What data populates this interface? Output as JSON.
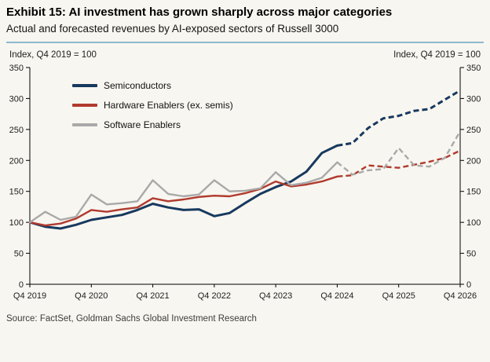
{
  "header": {
    "title": "Exhibit 15: AI investment has grown sharply across major categories",
    "subtitle": "Actual and forecasted revenues by AI-exposed sectors of Russell 3000"
  },
  "axis_caption_left": "Index, Q4 2019 = 100",
  "axis_caption_right": "Index, Q4 2019 = 100",
  "source": "Source: FactSet, Goldman Sachs Global Investment Research",
  "chart_data": {
    "type": "line",
    "title": "Exhibit 15: AI investment has grown sharply across major categories",
    "subtitle": "Actual and forecasted revenues by AI-exposed sectors of Russell 3000",
    "ylabel": "Index, Q4 2019 = 100",
    "ylim": [
      0,
      350
    ],
    "y_tick_step": 50,
    "grid": false,
    "legend_position": "top-left-inside",
    "x": [
      "Q4 2019",
      "Q1 2020",
      "Q2 2020",
      "Q3 2020",
      "Q4 2020",
      "Q1 2021",
      "Q2 2021",
      "Q3 2021",
      "Q4 2021",
      "Q1 2022",
      "Q2 2022",
      "Q3 2022",
      "Q4 2022",
      "Q1 2023",
      "Q2 2023",
      "Q3 2023",
      "Q4 2023",
      "Q1 2024",
      "Q2 2024",
      "Q3 2024",
      "Q4 2024",
      "Q1 2025",
      "Q2 2025",
      "Q3 2025",
      "Q4 2025",
      "Q1 2026",
      "Q2 2026",
      "Q3 2026",
      "Q4 2026"
    ],
    "x_tick_indices": [
      0,
      4,
      8,
      12,
      16,
      20,
      24,
      28
    ],
    "forecast_start_index": 20,
    "forecast_style": "dashed",
    "series": [
      {
        "name": "Semiconductors",
        "color": "#17395f",
        "width": 3,
        "values": [
          100,
          93,
          90,
          96,
          104,
          108,
          112,
          120,
          130,
          124,
          120,
          121,
          110,
          115,
          131,
          146,
          157,
          166,
          182,
          212,
          224,
          228,
          252,
          268,
          272,
          280,
          283,
          298,
          313
        ]
      },
      {
        "name": "Hardware Enablers (ex. semis)",
        "color": "#b03a2e",
        "width": 2.4,
        "values": [
          100,
          95,
          98,
          106,
          120,
          117,
          121,
          124,
          139,
          134,
          137,
          141,
          143,
          142,
          147,
          154,
          166,
          158,
          161,
          166,
          174,
          176,
          192,
          190,
          188,
          193,
          198,
          204,
          216
        ]
      },
      {
        "name": "Software Enablers",
        "color": "#a9a9a9",
        "width": 2.4,
        "values": [
          100,
          117,
          104,
          109,
          145,
          129,
          131,
          134,
          168,
          146,
          142,
          145,
          168,
          150,
          151,
          155,
          181,
          160,
          164,
          172,
          197,
          177,
          184,
          186,
          220,
          192,
          190,
          204,
          247
        ]
      }
    ]
  }
}
